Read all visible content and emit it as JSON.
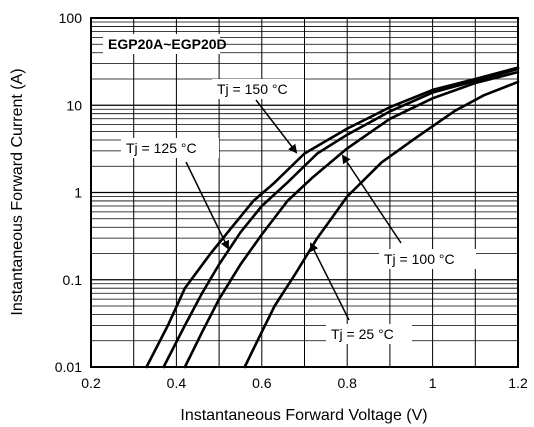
{
  "chart_data": {
    "type": "line",
    "title": "EGP20A~EGP20D",
    "xlabel": "Instantaneous Forward Voltage (V)",
    "ylabel": "Instantaneous Forward Current (A)",
    "xlim": [
      0.2,
      1.2
    ],
    "ylim": [
      0.01,
      100
    ],
    "yscale": "log",
    "x_ticks": [
      "0.2",
      "0.4",
      "0.6",
      "0.8",
      "1",
      "1.2"
    ],
    "y_ticks": [
      "0.01",
      "0.1",
      "1",
      "10",
      "100"
    ],
    "grid": true,
    "series": [
      {
        "name": "Tj = 150 °C",
        "points": [
          [
            0.33,
            0.01
          ],
          [
            0.38,
            0.03
          ],
          [
            0.42,
            0.08
          ],
          [
            0.48,
            0.2
          ],
          [
            0.53,
            0.4
          ],
          [
            0.58,
            0.8
          ],
          [
            0.63,
            1.3
          ],
          [
            0.7,
            2.8
          ],
          [
            0.8,
            5.4
          ],
          [
            0.9,
            9.5
          ],
          [
            1.0,
            15
          ],
          [
            1.1,
            20
          ],
          [
            1.2,
            27
          ]
        ]
      },
      {
        "name": "Tj = 125 °C",
        "points": [
          [
            0.37,
            0.01
          ],
          [
            0.42,
            0.03
          ],
          [
            0.46,
            0.07
          ],
          [
            0.5,
            0.15
          ],
          [
            0.55,
            0.35
          ],
          [
            0.6,
            0.7
          ],
          [
            0.66,
            1.3
          ],
          [
            0.73,
            2.8
          ],
          [
            0.8,
            4.6
          ],
          [
            0.9,
            8.5
          ],
          [
            1.0,
            14
          ],
          [
            1.1,
            19
          ],
          [
            1.2,
            26
          ]
        ]
      },
      {
        "name": "Tj = 100 °C",
        "points": [
          [
            0.42,
            0.01
          ],
          [
            0.46,
            0.025
          ],
          [
            0.5,
            0.06
          ],
          [
            0.55,
            0.15
          ],
          [
            0.6,
            0.33
          ],
          [
            0.66,
            0.8
          ],
          [
            0.72,
            1.5
          ],
          [
            0.8,
            3.2
          ],
          [
            0.9,
            7
          ],
          [
            1.0,
            12
          ],
          [
            1.1,
            18
          ],
          [
            1.2,
            24
          ]
        ]
      },
      {
        "name": "Tj = 25 °C",
        "points": [
          [
            0.56,
            0.01
          ],
          [
            0.59,
            0.02
          ],
          [
            0.63,
            0.05
          ],
          [
            0.68,
            0.12
          ],
          [
            0.73,
            0.3
          ],
          [
            0.8,
            0.9
          ],
          [
            0.88,
            2.2
          ],
          [
            0.96,
            4.2
          ],
          [
            1.05,
            8.5
          ],
          [
            1.12,
            13
          ],
          [
            1.2,
            18.5
          ]
        ]
      }
    ],
    "annotations": [
      "Tj = 150 °C",
      "Tj = 125 °C",
      "Tj = 100 °C",
      "Tj = 25 °C"
    ]
  }
}
